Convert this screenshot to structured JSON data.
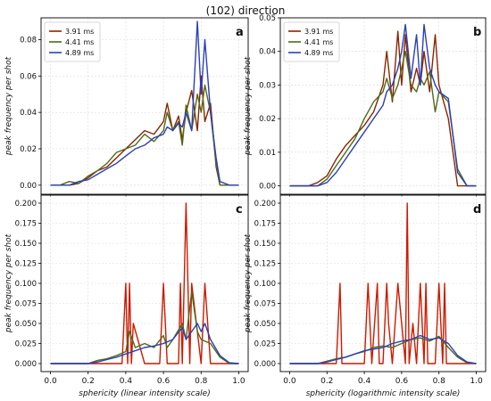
{
  "figure": {
    "suptitle": "(102) direction"
  },
  "chart_data": [
    {
      "type": "line",
      "panel_label": "a",
      "xlabel": "sphericity (linear intensity scale)",
      "ylabel": "peak frequency per shot",
      "xlim": [
        -0.05,
        1.05
      ],
      "ylim": [
        -0.005,
        0.092
      ],
      "xticks": [
        0.0,
        0.2,
        0.4,
        0.6,
        0.8,
        1.0
      ],
      "xtick_labels": [
        "",
        "",
        "",
        "",
        "",
        ""
      ],
      "yticks": [
        0.0,
        0.02,
        0.04,
        0.06,
        0.08
      ],
      "ytick_labels": [
        "0.00",
        "0.02",
        "0.04",
        "0.06",
        "0.08"
      ],
      "grid": true,
      "legend": {
        "placement": "top-left",
        "entries": [
          "3.91 ms",
          "4.41 ms",
          "4.89 ms"
        ]
      },
      "series": [
        {
          "name": "3.91 ms",
          "color": "#8b2500",
          "x": [
            0.0,
            0.05,
            0.1,
            0.15,
            0.2,
            0.25,
            0.3,
            0.35,
            0.4,
            0.45,
            0.5,
            0.55,
            0.6,
            0.62,
            0.65,
            0.68,
            0.7,
            0.72,
            0.75,
            0.78,
            0.8,
            0.82,
            0.85,
            0.88,
            0.9,
            0.95,
            1.0
          ],
          "y": [
            0.0,
            0.0,
            0.0,
            0.001,
            0.004,
            0.008,
            0.01,
            0.015,
            0.02,
            0.025,
            0.03,
            0.028,
            0.035,
            0.045,
            0.03,
            0.038,
            0.025,
            0.04,
            0.052,
            0.03,
            0.06,
            0.035,
            0.045,
            0.01,
            0.0,
            0.0,
            0.0
          ]
        },
        {
          "name": "4.41 ms",
          "color": "#4f6b1a",
          "x": [
            0.0,
            0.05,
            0.1,
            0.15,
            0.2,
            0.25,
            0.3,
            0.35,
            0.4,
            0.45,
            0.5,
            0.55,
            0.6,
            0.62,
            0.65,
            0.68,
            0.7,
            0.72,
            0.75,
            0.78,
            0.8,
            0.82,
            0.85,
            0.88,
            0.9,
            0.95,
            1.0
          ],
          "y": [
            0.0,
            0.0,
            0.002,
            0.001,
            0.005,
            0.008,
            0.012,
            0.018,
            0.02,
            0.022,
            0.028,
            0.024,
            0.03,
            0.04,
            0.03,
            0.035,
            0.022,
            0.044,
            0.03,
            0.05,
            0.04,
            0.055,
            0.04,
            0.012,
            0.0,
            0.0,
            0.0
          ]
        },
        {
          "name": "4.89 ms",
          "color": "#2b3fb8",
          "x": [
            0.0,
            0.05,
            0.1,
            0.15,
            0.2,
            0.25,
            0.3,
            0.35,
            0.4,
            0.45,
            0.5,
            0.55,
            0.6,
            0.62,
            0.65,
            0.68,
            0.7,
            0.72,
            0.75,
            0.78,
            0.8,
            0.82,
            0.85,
            0.88,
            0.9,
            0.95,
            1.0
          ],
          "y": [
            0.0,
            0.0,
            0.0,
            0.002,
            0.003,
            0.006,
            0.009,
            0.012,
            0.016,
            0.02,
            0.022,
            0.026,
            0.028,
            0.032,
            0.03,
            0.034,
            0.032,
            0.04,
            0.03,
            0.09,
            0.05,
            0.08,
            0.04,
            0.015,
            0.002,
            0.0,
            0.0
          ]
        }
      ]
    },
    {
      "type": "line",
      "panel_label": "b",
      "xlabel": "sphericity (logarithmic intensity scale)",
      "ylabel": "peak frequency per shot",
      "xlim": [
        -0.05,
        1.05
      ],
      "ylim": [
        -0.0025,
        0.05
      ],
      "xticks": [
        0.0,
        0.2,
        0.4,
        0.6,
        0.8,
        1.0
      ],
      "xtick_labels": [
        "",
        "",
        "",
        "",
        "",
        ""
      ],
      "yticks": [
        0.0,
        0.01,
        0.02,
        0.03,
        0.04,
        0.05
      ],
      "ytick_labels": [
        "0.00",
        "0.01",
        "0.02",
        "0.03",
        "0.04",
        "0.05"
      ],
      "grid": true,
      "legend": {
        "placement": "top-left",
        "entries": [
          "3.91 ms",
          "4.41 ms",
          "4.89 ms"
        ]
      },
      "series": [
        {
          "name": "3.91 ms",
          "color": "#8b2500",
          "x": [
            0.0,
            0.1,
            0.15,
            0.2,
            0.25,
            0.3,
            0.35,
            0.4,
            0.45,
            0.5,
            0.52,
            0.55,
            0.58,
            0.6,
            0.62,
            0.65,
            0.68,
            0.7,
            0.72,
            0.75,
            0.78,
            0.8,
            0.85,
            0.9,
            0.95,
            1.0
          ],
          "y": [
            0.0,
            0.0,
            0.001,
            0.003,
            0.008,
            0.012,
            0.015,
            0.018,
            0.022,
            0.03,
            0.04,
            0.025,
            0.046,
            0.03,
            0.045,
            0.028,
            0.035,
            0.03,
            0.04,
            0.028,
            0.045,
            0.03,
            0.02,
            0.0,
            0.0,
            0.0
          ]
        },
        {
          "name": "4.41 ms",
          "color": "#4f6b1a",
          "x": [
            0.0,
            0.1,
            0.15,
            0.2,
            0.25,
            0.3,
            0.35,
            0.4,
            0.45,
            0.5,
            0.52,
            0.55,
            0.58,
            0.6,
            0.62,
            0.65,
            0.68,
            0.7,
            0.72,
            0.75,
            0.78,
            0.8,
            0.85,
            0.9,
            0.95,
            1.0
          ],
          "y": [
            0.0,
            0.0,
            0.0,
            0.002,
            0.006,
            0.01,
            0.014,
            0.02,
            0.025,
            0.028,
            0.032,
            0.026,
            0.03,
            0.035,
            0.04,
            0.03,
            0.028,
            0.032,
            0.03,
            0.034,
            0.022,
            0.028,
            0.025,
            0.005,
            0.0,
            0.0
          ]
        },
        {
          "name": "4.89 ms",
          "color": "#2b3fb8",
          "x": [
            0.0,
            0.1,
            0.15,
            0.2,
            0.25,
            0.3,
            0.35,
            0.4,
            0.45,
            0.5,
            0.52,
            0.55,
            0.58,
            0.6,
            0.62,
            0.65,
            0.68,
            0.7,
            0.72,
            0.75,
            0.78,
            0.8,
            0.85,
            0.9,
            0.95,
            1.0
          ],
          "y": [
            0.0,
            0.0,
            0.0,
            0.001,
            0.004,
            0.008,
            0.012,
            0.016,
            0.02,
            0.024,
            0.028,
            0.03,
            0.035,
            0.04,
            0.048,
            0.032,
            0.045,
            0.03,
            0.048,
            0.035,
            0.03,
            0.028,
            0.026,
            0.004,
            0.0,
            0.0
          ]
        }
      ]
    },
    {
      "type": "line",
      "panel_label": "c",
      "xlabel": "sphericity (linear intensity scale)",
      "ylabel": "peak frequency per shot",
      "xlim": [
        -0.05,
        1.05
      ],
      "ylim": [
        -0.01,
        0.21
      ],
      "xticks": [
        0.0,
        0.2,
        0.4,
        0.6,
        0.8,
        1.0
      ],
      "xtick_labels": [
        "0.0",
        "0.2",
        "0.4",
        "0.6",
        "0.8",
        "1.0"
      ],
      "yticks": [
        0.0,
        0.025,
        0.05,
        0.075,
        0.1,
        0.125,
        0.15,
        0.175,
        0.2
      ],
      "ytick_labels": [
        "0.000",
        "0.025",
        "0.050",
        "0.075",
        "0.100",
        "0.125",
        "0.150",
        "0.175",
        "0.200"
      ],
      "grid": true,
      "series": [
        {
          "name": "3.91 ms",
          "color": "#cc1a00",
          "x": [
            0.0,
            0.35,
            0.38,
            0.4,
            0.41,
            0.42,
            0.43,
            0.44,
            0.5,
            0.58,
            0.6,
            0.61,
            0.62,
            0.68,
            0.69,
            0.7,
            0.71,
            0.72,
            0.73,
            0.74,
            0.75,
            0.8,
            0.82,
            0.85,
            0.9,
            1.0
          ],
          "y": [
            0.0,
            0.0,
            0.0,
            0.1,
            0.0,
            0.1,
            0.0,
            0.05,
            0.0,
            0.0,
            0.1,
            0.05,
            0.0,
            0.0,
            0.1,
            0.0,
            0.1,
            0.2,
            0.1,
            0.0,
            0.1,
            0.0,
            0.1,
            0.0,
            0.0,
            0.0
          ]
        },
        {
          "name": "4.41 ms",
          "color": "#4f6b1a",
          "x": [
            0.0,
            0.2,
            0.25,
            0.3,
            0.35,
            0.4,
            0.42,
            0.45,
            0.5,
            0.55,
            0.6,
            0.62,
            0.65,
            0.7,
            0.72,
            0.75,
            0.78,
            0.8,
            0.85,
            0.9,
            0.95,
            1.0
          ],
          "y": [
            0.0,
            0.0,
            0.004,
            0.006,
            0.01,
            0.015,
            0.04,
            0.02,
            0.025,
            0.02,
            0.035,
            0.02,
            0.03,
            0.05,
            0.03,
            0.09,
            0.04,
            0.03,
            0.025,
            0.008,
            0.0,
            0.0
          ]
        },
        {
          "name": "4.89 ms",
          "color": "#2b3fb8",
          "x": [
            0.0,
            0.2,
            0.25,
            0.3,
            0.35,
            0.4,
            0.45,
            0.5,
            0.55,
            0.6,
            0.65,
            0.7,
            0.72,
            0.75,
            0.78,
            0.8,
            0.82,
            0.85,
            0.9,
            0.95,
            1.0
          ],
          "y": [
            0.0,
            0.0,
            0.002,
            0.005,
            0.008,
            0.012,
            0.016,
            0.02,
            0.022,
            0.025,
            0.03,
            0.045,
            0.03,
            0.04,
            0.05,
            0.04,
            0.05,
            0.03,
            0.01,
            0.001,
            0.0
          ]
        }
      ]
    },
    {
      "type": "line",
      "panel_label": "d",
      "xlabel": "sphericity (logarithmic intensity scale)",
      "ylabel": "peak frequency per shot",
      "xlim": [
        -0.05,
        1.05
      ],
      "ylim": [
        -0.01,
        0.21
      ],
      "xticks": [
        0.0,
        0.2,
        0.4,
        0.6,
        0.8,
        1.0
      ],
      "xtick_labels": [
        "0.0",
        "0.2",
        "0.4",
        "0.6",
        "0.8",
        "1.0"
      ],
      "yticks": [
        0.0,
        0.025,
        0.05,
        0.075,
        0.1,
        0.125,
        0.15,
        0.175,
        0.2
      ],
      "ytick_labels": [
        "0.000",
        "0.025",
        "0.050",
        "0.075",
        "0.100",
        "0.125",
        "0.150",
        "0.175",
        "0.200"
      ],
      "grid": true,
      "series": [
        {
          "name": "3.91 ms",
          "color": "#cc1a00",
          "x": [
            0.0,
            0.25,
            0.27,
            0.28,
            0.3,
            0.4,
            0.42,
            0.43,
            0.44,
            0.47,
            0.48,
            0.5,
            0.52,
            0.53,
            0.55,
            0.58,
            0.6,
            0.62,
            0.63,
            0.64,
            0.66,
            0.68,
            0.7,
            0.72,
            0.73,
            0.74,
            0.78,
            0.8,
            0.82,
            0.83,
            0.84,
            0.9,
            1.0
          ],
          "y": [
            0.0,
            0.0,
            0.1,
            0.0,
            0.0,
            0.0,
            0.1,
            0.05,
            0.0,
            0.1,
            0.0,
            0.0,
            0.1,
            0.05,
            0.0,
            0.1,
            0.05,
            0.0,
            0.2,
            0.0,
            0.05,
            0.0,
            0.1,
            0.0,
            0.1,
            0.0,
            0.0,
            0.1,
            0.0,
            0.1,
            0.0,
            0.0,
            0.0
          ]
        },
        {
          "name": "4.41 ms",
          "color": "#4f6b1a",
          "x": [
            0.0,
            0.15,
            0.2,
            0.25,
            0.3,
            0.35,
            0.4,
            0.45,
            0.5,
            0.55,
            0.6,
            0.65,
            0.7,
            0.75,
            0.8,
            0.85,
            0.9,
            0.95,
            1.0
          ],
          "y": [
            0.0,
            0.0,
            0.003,
            0.006,
            0.008,
            0.012,
            0.015,
            0.02,
            0.022,
            0.02,
            0.025,
            0.03,
            0.032,
            0.028,
            0.034,
            0.02,
            0.008,
            0.001,
            0.0
          ]
        },
        {
          "name": "4.89 ms",
          "color": "#2b3fb8",
          "x": [
            0.0,
            0.15,
            0.2,
            0.25,
            0.3,
            0.35,
            0.4,
            0.45,
            0.5,
            0.55,
            0.6,
            0.65,
            0.7,
            0.75,
            0.8,
            0.85,
            0.9,
            0.95,
            1.0
          ],
          "y": [
            0.0,
            0.0,
            0.002,
            0.005,
            0.008,
            0.012,
            0.016,
            0.018,
            0.02,
            0.025,
            0.028,
            0.03,
            0.035,
            0.03,
            0.032,
            0.025,
            0.01,
            0.002,
            0.0
          ]
        }
      ]
    }
  ]
}
